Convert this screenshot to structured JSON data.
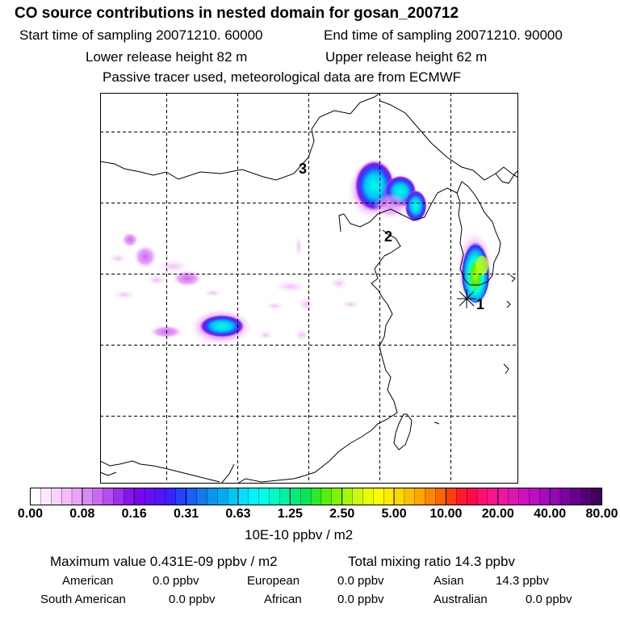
{
  "header": {
    "title": "CO  source contributions in nested domain for gosan_200712",
    "start_time": "Start time of sampling 20071210. 60000",
    "end_time": "End time of sampling 20071210. 90000",
    "lower_release": "Lower release height   82 m",
    "upper_release": "Upper release height   62 m",
    "tracer_note": "Passive tracer used, meteorological data are from ECMWF"
  },
  "map": {
    "region_labels": [
      "3",
      "2",
      "1"
    ],
    "receptor_marker": "asterisk"
  },
  "colorbar": {
    "ticks": [
      "0.00",
      "0.08",
      "0.16",
      "0.31",
      "0.63",
      "1.25",
      "2.50",
      "5.00",
      "10.00",
      "20.00",
      "40.00",
      "80.00"
    ],
    "unit_label": "10E-10 ppbv / m2",
    "colors": [
      "#ffffff",
      "#fbe9fd",
      "#f6d3fb",
      "#f0bcf9",
      "#e9a3f7",
      "#d98af4",
      "#c76cf1",
      "#b54def",
      "#a02fed",
      "#8a13ec",
      "#7a05f0",
      "#6a0cf5",
      "#5414fb",
      "#3a22ff",
      "#2741ff",
      "#1c5ef7",
      "#1479f2",
      "#0b93ef",
      "#03acf1",
      "#00c7f6",
      "#00e1fb",
      "#00f4fb",
      "#00ffe6",
      "#00fbc6",
      "#00f3a2",
      "#00ec7c",
      "#09e654",
      "#2de92b",
      "#56ef0a",
      "#7ff302",
      "#a6f805",
      "#cafb0a",
      "#e8fd0c",
      "#fffb00",
      "#ffea00",
      "#ffd600",
      "#ffbf00",
      "#ffa500",
      "#ff8600",
      "#ff6400",
      "#ff3f10",
      "#ff1b2c",
      "#ff0b4d",
      "#ff0f6e",
      "#fa158b",
      "#ee17a0",
      "#df15b1",
      "#cf11bf",
      "#bd0dc5",
      "#a808c2",
      "#9106b6",
      "#7b03a2",
      "#66018c",
      "#530076",
      "#420060"
    ]
  },
  "summary": {
    "max_label": "Maximum value  0.431E-09 ppbv / m2",
    "total_label": "Total mixing ratio       14.3 ppbv",
    "american": "American",
    "american_val": "0.0 ppbv",
    "european": "European",
    "european_val": "0.0 ppbv",
    "asian": "Asian",
    "asian_val": "14.3 ppbv",
    "south_american": "South American",
    "south_american_val": "0.0 ppbv",
    "african": "African",
    "african_val": "0.0 ppbv",
    "australian": "Australian",
    "australian_val": "0.0 ppbv"
  }
}
